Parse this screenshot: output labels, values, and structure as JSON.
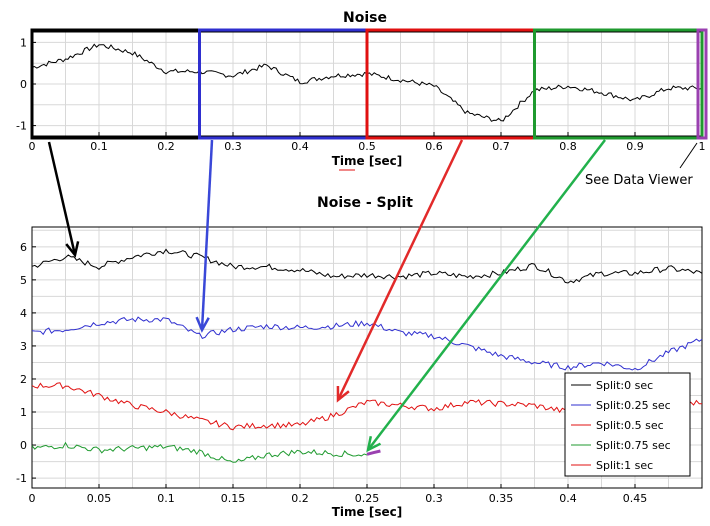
{
  "colors": {
    "black": "#000000",
    "blue": "#2f2fcf",
    "red": "#e01010",
    "green": "#1f9a2f",
    "purple": "#9a40b0",
    "arrow_blue": "#3a48d8",
    "arrow_red": "#e22a2a",
    "arrow_green": "#22b14c",
    "grid": "#d8d8d8",
    "axis": "#000000"
  },
  "annotation": {
    "note": "See Data Viewer"
  },
  "chart_data": [
    {
      "type": "line",
      "title": "Noise",
      "xlabel": "Time [sec]",
      "ylabel": "",
      "xlim": [
        0,
        1
      ],
      "ylim": [
        -1.25,
        1.25
      ],
      "grid": true,
      "x_ticks": [
        0,
        0.1,
        0.2,
        0.3,
        0.4,
        0.5,
        0.6,
        0.7,
        0.8,
        0.9,
        1
      ],
      "x_tick_labels": [
        "0",
        "0.1",
        "0.2",
        "0.3",
        "0.4",
        "0.5",
        "0.6",
        "0.7",
        "0.8",
        "0.9",
        "1"
      ],
      "y_ticks": [
        -1,
        0,
        1
      ],
      "y_tick_labels": [
        "-1",
        "0",
        "1"
      ],
      "series": [
        {
          "color": "#000000",
          "x": [
            0,
            0.05,
            0.1,
            0.15,
            0.2,
            0.25,
            0.3,
            0.35,
            0.4,
            0.45,
            0.5,
            0.55,
            0.6,
            0.65,
            0.7,
            0.75,
            0.8,
            0.85,
            0.9,
            0.95,
            1
          ],
          "y": [
            0.4,
            0.6,
            0.95,
            0.75,
            0.3,
            0.3,
            0.2,
            0.45,
            0.05,
            0.2,
            0.25,
            0.1,
            -0.05,
            -0.7,
            -0.9,
            -0.15,
            -0.05,
            -0.2,
            -0.4,
            -0.1,
            -0.1
          ]
        }
      ],
      "split_windows": [
        {
          "start": 0,
          "end": 0.25,
          "color": "#000000"
        },
        {
          "start": 0.25,
          "end": 0.5,
          "color": "#2f2fcf"
        },
        {
          "start": 0.5,
          "end": 0.75,
          "color": "#e01010"
        },
        {
          "start": 0.75,
          "end": 1.0,
          "color": "#1f9a2f"
        },
        {
          "start": 1.0,
          "end": 1.0,
          "color": "#9a40b0"
        }
      ]
    },
    {
      "type": "line",
      "title": "Noise - Split",
      "xlabel": "Time [sec]",
      "ylabel": "",
      "xlim": [
        0,
        0.5
      ],
      "ylim": [
        -1.3,
        6.6
      ],
      "grid": true,
      "legend_position": "bottom-right",
      "x_ticks": [
        0,
        0.05,
        0.1,
        0.15,
        0.2,
        0.25,
        0.3,
        0.35,
        0.4,
        0.45
      ],
      "x_tick_labels": [
        "0",
        "0.05",
        "0.1",
        "0.15",
        "0.2",
        "0.25",
        "0.3",
        "0.35",
        "0.4",
        "0.45"
      ],
      "y_ticks": [
        -1,
        0,
        1,
        2,
        3,
        4,
        5,
        6
      ],
      "y_tick_labels": [
        "-1",
        "0",
        "1",
        "2",
        "3",
        "4",
        "5",
        "6"
      ],
      "series": [
        {
          "name": "Split:0 sec",
          "color": "#000000",
          "x": [
            0,
            0.025,
            0.05,
            0.075,
            0.1,
            0.125,
            0.15,
            0.175,
            0.2,
            0.225,
            0.25,
            0.275,
            0.3,
            0.325,
            0.35,
            0.375,
            0.4,
            0.425,
            0.45,
            0.475,
            0.5
          ],
          "y": [
            5.4,
            5.7,
            5.4,
            5.7,
            5.9,
            5.7,
            5.4,
            5.4,
            5.3,
            5.1,
            5.15,
            5.1,
            5.2,
            5.1,
            5.2,
            5.45,
            4.95,
            5.2,
            5.2,
            5.35,
            5.2
          ]
        },
        {
          "name": "Split:0.25 sec",
          "color": "#2f2fcf",
          "x": [
            0,
            0.025,
            0.05,
            0.075,
            0.1,
            0.125,
            0.15,
            0.175,
            0.2,
            0.225,
            0.25,
            0.275,
            0.3,
            0.325,
            0.35,
            0.375,
            0.4,
            0.425,
            0.45,
            0.475,
            0.5
          ],
          "y": [
            3.4,
            3.5,
            3.7,
            3.8,
            3.8,
            3.3,
            3.5,
            3.6,
            3.55,
            3.6,
            3.7,
            3.4,
            3.3,
            3.0,
            2.7,
            2.5,
            2.35,
            2.5,
            2.3,
            2.8,
            3.2
          ]
        },
        {
          "name": "Split:0.5 sec",
          "color": "#e01010",
          "x": [
            0,
            0.025,
            0.05,
            0.075,
            0.1,
            0.125,
            0.15,
            0.175,
            0.2,
            0.225,
            0.25,
            0.275,
            0.3,
            0.325,
            0.35,
            0.375,
            0.4,
            0.425,
            0.45,
            0.475,
            0.5
          ],
          "y": [
            1.8,
            1.8,
            1.5,
            1.2,
            1.0,
            0.75,
            0.55,
            0.6,
            0.6,
            0.9,
            1.3,
            1.2,
            1.1,
            1.3,
            1.25,
            1.2,
            1.0,
            1.1,
            1.2,
            1.3,
            1.25
          ]
        },
        {
          "name": "Split:0.75 sec",
          "color": "#1f9a2f",
          "x": [
            0,
            0.025,
            0.05,
            0.075,
            0.1,
            0.125,
            0.15,
            0.175,
            0.2,
            0.225,
            0.25
          ],
          "y": [
            -0.1,
            0.0,
            -0.15,
            -0.1,
            -0.05,
            -0.2,
            -0.55,
            -0.3,
            -0.2,
            -0.25,
            -0.3
          ]
        },
        {
          "name": "Split:1 sec",
          "color": "#e01010",
          "x": [
            0.25,
            0.26
          ],
          "y": [
            -0.28,
            -0.18
          ]
        }
      ]
    }
  ]
}
